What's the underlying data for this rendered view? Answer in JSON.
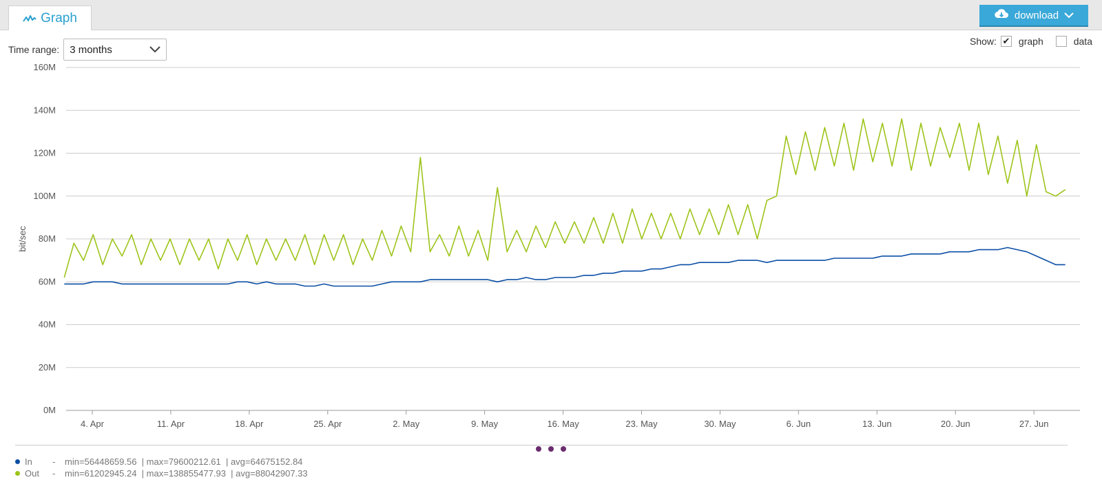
{
  "tabs": [
    {
      "label": "Graph",
      "icon": "graph-icon"
    }
  ],
  "download_button": {
    "label": "download",
    "icon": "cloud-download-icon"
  },
  "time_range": {
    "label": "Time range:",
    "selected": "3 months"
  },
  "show": {
    "label": "Show:",
    "graph_label": "graph",
    "graph_checked": true,
    "data_label": "data",
    "data_checked": false
  },
  "colors": {
    "in": "#0a4ea5",
    "out": "#9dc41a",
    "accent": "#3aa8d8",
    "pager": "#6a2c6e"
  },
  "legend": [
    {
      "name": "In",
      "color": "#0a4ea5",
      "stats": "min=56448659.56  | max=79600212.61  | avg=64675152.84"
    },
    {
      "name": "Out",
      "color": "#9dc41a",
      "stats": "min=61202945.24  | max=138855477.93  | avg=88042907.33"
    }
  ],
  "chart_data": {
    "type": "line",
    "ylabel": "bit/sec",
    "ylim": [
      0,
      160000000
    ],
    "yticks": [
      "0M",
      "20M",
      "40M",
      "60M",
      "80M",
      "100M",
      "120M",
      "140M",
      "160M"
    ],
    "xticks": [
      "4. Apr",
      "11. Apr",
      "18. Apr",
      "25. Apr",
      "2. May",
      "9. May",
      "16. May",
      "23. May",
      "30. May",
      "6. Jun",
      "13. Jun",
      "20. Jun",
      "27. Jun"
    ],
    "x_start": "2016-04-01",
    "x_end": "2016-06-30",
    "grid": true,
    "series": [
      {
        "name": "In",
        "color": "#0a4ea5",
        "values": [
          59,
          59,
          59,
          60,
          60,
          60,
          59,
          59,
          59,
          59,
          59,
          59,
          59,
          59,
          59,
          59,
          59,
          59,
          60,
          60,
          59,
          60,
          59,
          59,
          59,
          58,
          58,
          59,
          58,
          58,
          58,
          58,
          58,
          59,
          60,
          60,
          60,
          60,
          61,
          61,
          61,
          61,
          61,
          61,
          61,
          60,
          61,
          61,
          62,
          61,
          61,
          62,
          62,
          62,
          63,
          63,
          64,
          64,
          65,
          65,
          65,
          66,
          66,
          67,
          68,
          68,
          69,
          69,
          69,
          69,
          70,
          70,
          70,
          69,
          70,
          70,
          70,
          70,
          70,
          70,
          71,
          71,
          71,
          71,
          71,
          72,
          72,
          72,
          73,
          73,
          73,
          73,
          74,
          74,
          74,
          75,
          75,
          75,
          76,
          75,
          74,
          72,
          70,
          68,
          68
        ]
      },
      {
        "name": "Out",
        "color": "#9dc41a",
        "values": [
          62,
          78,
          70,
          82,
          68,
          80,
          72,
          82,
          68,
          80,
          70,
          80,
          68,
          80,
          70,
          80,
          66,
          80,
          70,
          82,
          68,
          80,
          70,
          80,
          70,
          82,
          68,
          82,
          70,
          82,
          68,
          80,
          70,
          84,
          72,
          86,
          74,
          118,
          74,
          82,
          72,
          86,
          72,
          84,
          70,
          104,
          74,
          84,
          74,
          86,
          76,
          88,
          78,
          88,
          78,
          90,
          78,
          92,
          78,
          94,
          80,
          92,
          80,
          92,
          80,
          94,
          82,
          94,
          82,
          96,
          82,
          96,
          80,
          98,
          100,
          128,
          110,
          130,
          112,
          132,
          114,
          134,
          112,
          136,
          116,
          134,
          114,
          136,
          112,
          134,
          114,
          132,
          118,
          134,
          112,
          134,
          110,
          128,
          106,
          126,
          100,
          124,
          102,
          100,
          103
        ]
      }
    ]
  }
}
